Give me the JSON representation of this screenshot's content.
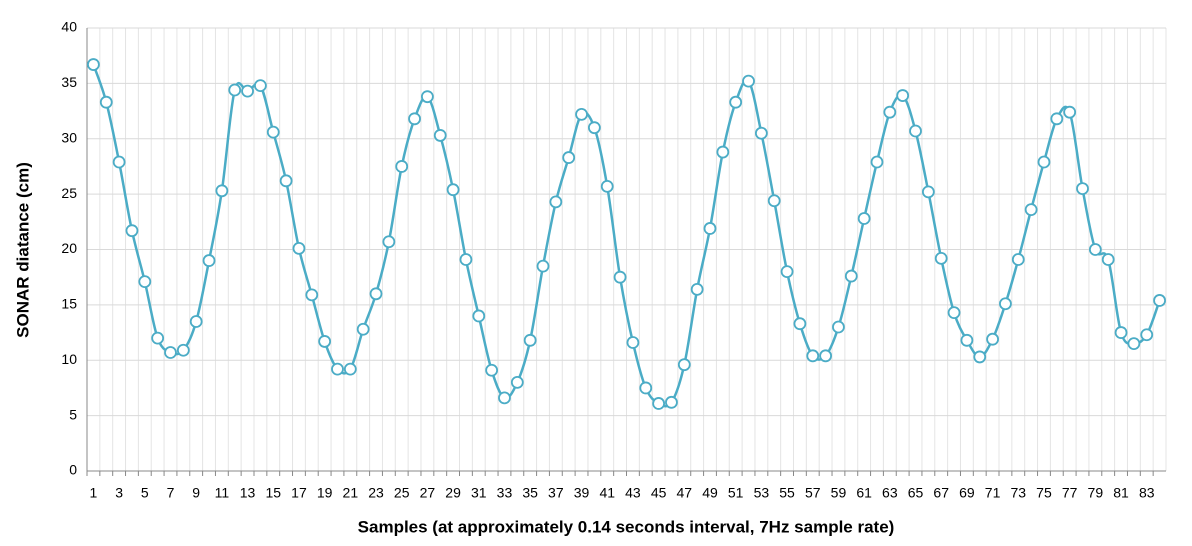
{
  "chart_data": {
    "type": "line",
    "x_label": "Samples (at approximately 0.14 seconds interval, 7Hz sample rate)",
    "y_label": "SONAR diatance (cm)",
    "categories": [
      "1",
      null,
      "3",
      null,
      "5",
      null,
      "7",
      null,
      "9",
      null,
      "11",
      null,
      "13",
      null,
      "15",
      null,
      "17",
      null,
      "19",
      null,
      "21",
      null,
      "23",
      null,
      "25",
      null,
      "27",
      null,
      "29",
      null,
      "31",
      null,
      "33",
      null,
      "35",
      null,
      "37",
      null,
      "39",
      null,
      "41",
      null,
      "43",
      null,
      "45",
      null,
      "47",
      null,
      "49",
      null,
      "51",
      null,
      "53",
      null,
      "55",
      null,
      "57",
      null,
      "59",
      null,
      "61",
      null,
      "63",
      null,
      "65",
      null,
      "67",
      null,
      "69",
      null,
      "71",
      null,
      "73",
      null,
      "75",
      null,
      "77",
      null,
      "79",
      null,
      "81",
      null,
      "83",
      null
    ],
    "values": [
      36.7,
      33.3,
      27.9,
      21.7,
      17.1,
      12.0,
      10.7,
      10.9,
      13.5,
      19.0,
      25.3,
      34.4,
      34.3,
      34.8,
      30.6,
      26.2,
      20.1,
      15.9,
      11.7,
      9.2,
      9.2,
      12.8,
      16.0,
      20.7,
      27.5,
      31.8,
      33.8,
      30.3,
      25.4,
      19.1,
      14.0,
      9.1,
      6.6,
      8.0,
      11.8,
      18.5,
      24.3,
      28.3,
      32.2,
      31.0,
      25.7,
      17.5,
      11.6,
      7.5,
      6.1,
      6.2,
      9.6,
      16.4,
      21.9,
      28.8,
      33.3,
      35.2,
      30.5,
      24.4,
      18.0,
      13.3,
      10.4,
      10.4,
      13.0,
      17.6,
      22.8,
      27.9,
      32.4,
      33.9,
      30.7,
      25.2,
      19.2,
      14.3,
      11.8,
      10.3,
      11.9,
      15.1,
      19.1,
      23.6,
      27.9,
      31.8,
      32.4,
      25.5,
      20.0,
      19.1,
      12.5,
      11.5,
      12.3,
      15.4
    ],
    "color": "#4bacc6",
    "ylim": [
      0,
      40
    ],
    "yticks": [
      0,
      5,
      10,
      15,
      20,
      25,
      30,
      35,
      40
    ],
    "grid": true
  }
}
